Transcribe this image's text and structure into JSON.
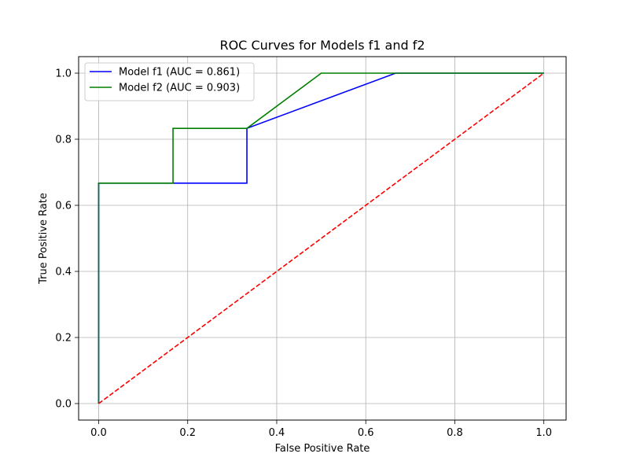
{
  "chart_data": {
    "type": "line",
    "title": "ROC Curves for Models f1 and f2",
    "xlabel": "False Positive Rate",
    "ylabel": "True Positive Rate",
    "xlim": [
      -0.045,
      1.05
    ],
    "ylim": [
      -0.05,
      1.05
    ],
    "xticks": [
      0.0,
      0.2,
      0.4,
      0.6,
      0.8,
      1.0
    ],
    "yticks": [
      0.0,
      0.2,
      0.4,
      0.6,
      0.8,
      1.0
    ],
    "xtick_labels": [
      "0.0",
      "0.2",
      "0.4",
      "0.6",
      "0.8",
      "1.0"
    ],
    "ytick_labels": [
      "0.0",
      "0.2",
      "0.4",
      "0.6",
      "0.8",
      "1.0"
    ],
    "grid": true,
    "legend_position": "upper-left",
    "series": [
      {
        "name": "Model f1 (AUC = 0.861)",
        "color": "#0000ff",
        "linestyle": "solid",
        "x": [
          0.0,
          0.0,
          0.0,
          0.333,
          0.333,
          0.667,
          1.0
        ],
        "y": [
          0.0,
          0.0,
          0.667,
          0.667,
          0.833,
          1.0,
          1.0
        ]
      },
      {
        "name": "Model f2 (AUC = 0.903)",
        "color": "#008000",
        "linestyle": "solid",
        "x": [
          0.0,
          0.0,
          0.0,
          0.167,
          0.167,
          0.333,
          0.5,
          1.0
        ],
        "y": [
          0.0,
          0.0,
          0.667,
          0.667,
          0.833,
          0.833,
          1.0,
          1.0
        ]
      },
      {
        "color": "#ff0000",
        "linestyle": "dashed",
        "x": [
          0.0,
          1.0
        ],
        "y": [
          0.0,
          1.0
        ],
        "in_legend": false
      }
    ]
  }
}
